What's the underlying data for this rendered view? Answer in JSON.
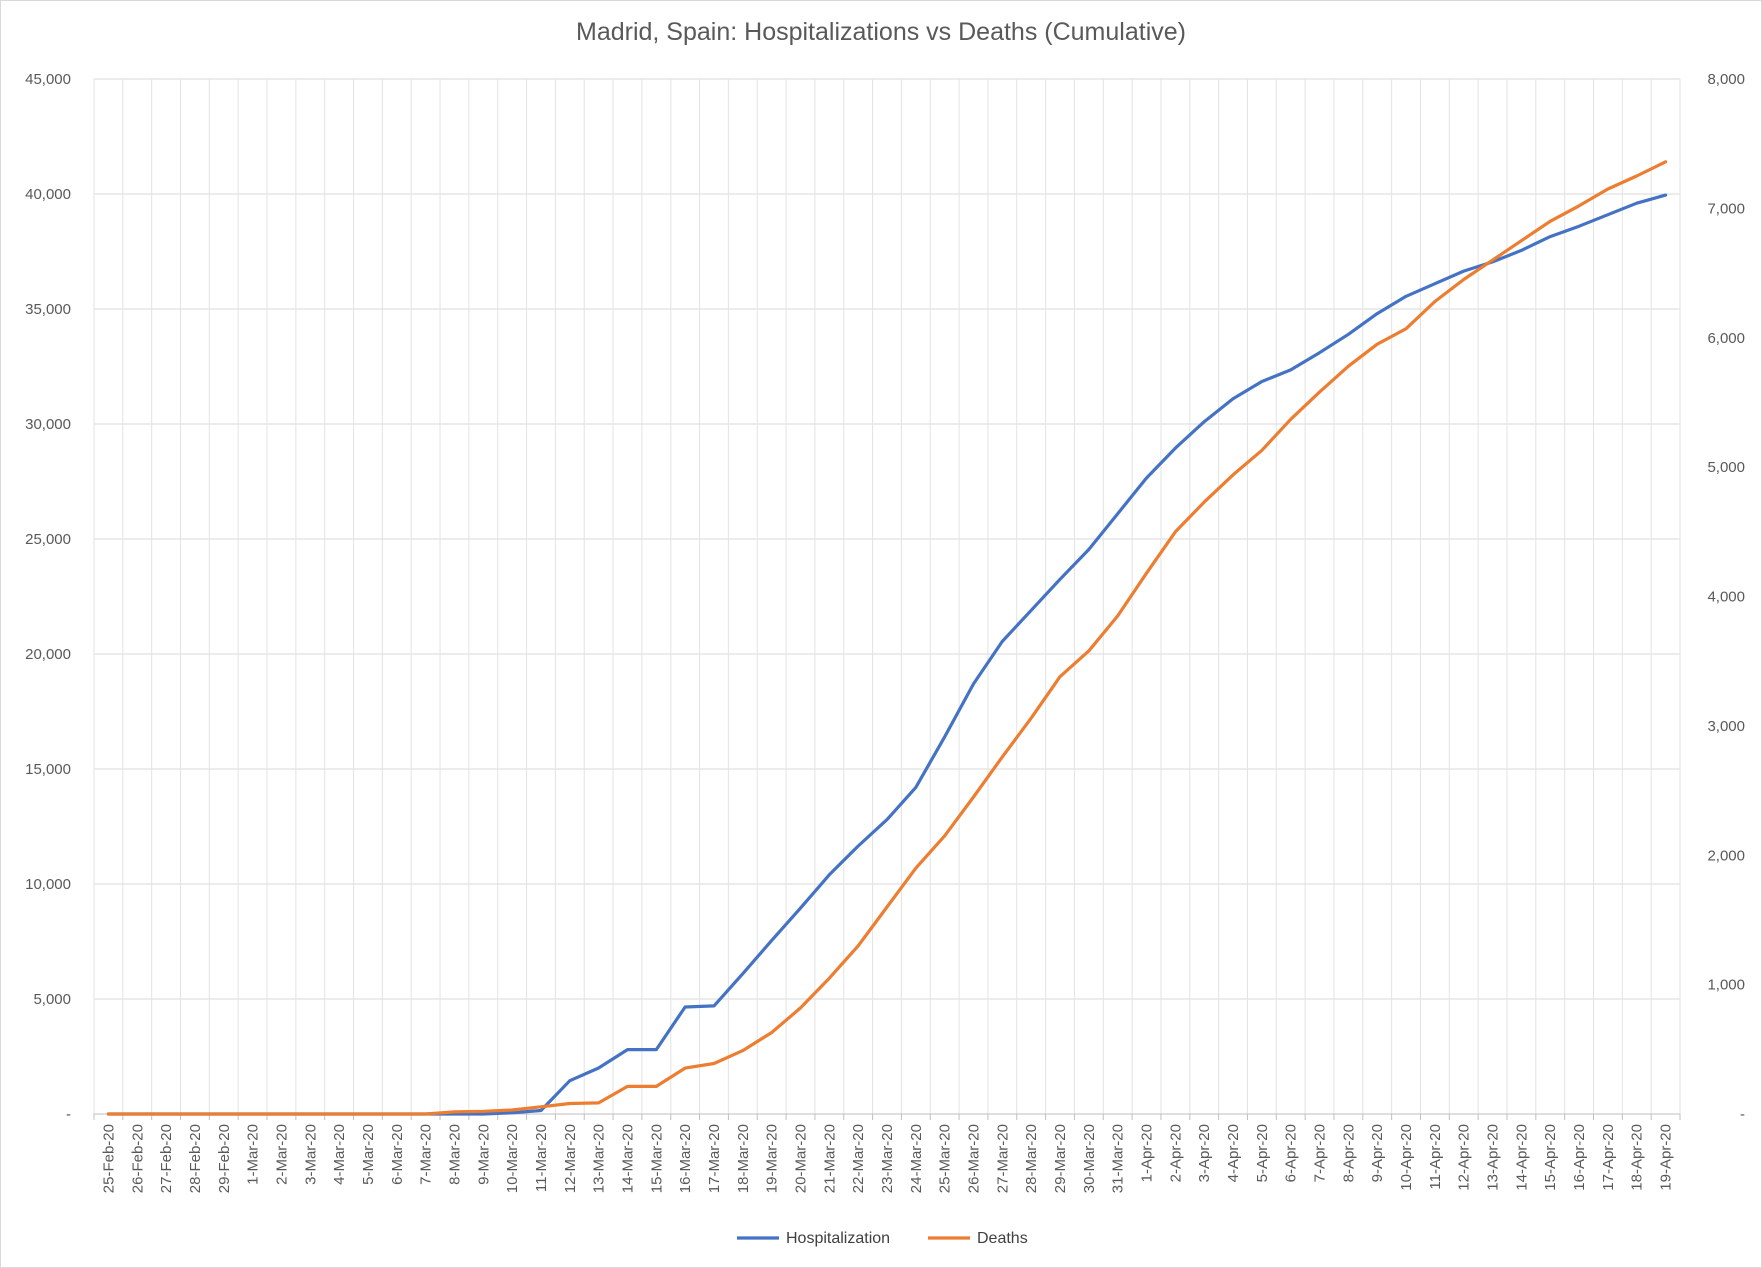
{
  "chart_data": {
    "type": "line",
    "title": "Madrid, Spain: Hospitalizations vs Deaths (Cumulative)",
    "xlabel": "",
    "ylabel": "",
    "y2label": "",
    "categories": [
      "25-Feb-20",
      "26-Feb-20",
      "27-Feb-20",
      "28-Feb-20",
      "29-Feb-20",
      "1-Mar-20",
      "2-Mar-20",
      "3-Mar-20",
      "4-Mar-20",
      "5-Mar-20",
      "6-Mar-20",
      "7-Mar-20",
      "8-Mar-20",
      "9-Mar-20",
      "10-Mar-20",
      "11-Mar-20",
      "12-Mar-20",
      "13-Mar-20",
      "14-Mar-20",
      "15-Mar-20",
      "16-Mar-20",
      "17-Mar-20",
      "18-Mar-20",
      "19-Mar-20",
      "20-Mar-20",
      "21-Mar-20",
      "22-Mar-20",
      "23-Mar-20",
      "24-Mar-20",
      "25-Mar-20",
      "26-Mar-20",
      "27-Mar-20",
      "28-Mar-20",
      "29-Mar-20",
      "30-Mar-20",
      "31-Mar-20",
      "1-Apr-20",
      "2-Apr-20",
      "3-Apr-20",
      "4-Apr-20",
      "5-Apr-20",
      "6-Apr-20",
      "7-Apr-20",
      "8-Apr-20",
      "9-Apr-20",
      "10-Apr-20",
      "11-Apr-20",
      "12-Apr-20",
      "13-Apr-20",
      "14-Apr-20",
      "15-Apr-20",
      "16-Apr-20",
      "17-Apr-20",
      "18-Apr-20",
      "19-Apr-20"
    ],
    "ylim": [
      0,
      45000
    ],
    "y2lim": [
      0,
      8000
    ],
    "y_ticks": [
      "-",
      "5,000",
      "10,000",
      "15,000",
      "20,000",
      "25,000",
      "30,000",
      "35,000",
      "40,000",
      "45,000"
    ],
    "y2_ticks": [
      "-",
      "1,000",
      "2,000",
      "3,000",
      "4,000",
      "5,000",
      "6,000",
      "7,000",
      "8,000"
    ],
    "grid": true,
    "legend_position": "bottom",
    "series": [
      {
        "name": "Hospitalization",
        "axis": "left",
        "color": "#4472C4",
        "values": [
          0,
          0,
          0,
          0,
          0,
          0,
          0,
          0,
          0,
          0,
          0,
          0,
          0,
          0,
          50,
          150,
          1450,
          2000,
          2800,
          2800,
          4650,
          4700,
          6100,
          7550,
          8950,
          10400,
          11650,
          12800,
          14200,
          16400,
          18700,
          20550,
          21900,
          23250,
          24550,
          26100,
          27650,
          28950,
          30100,
          31100,
          31850,
          32350,
          33100,
          33900,
          34800,
          35550,
          36100,
          36650,
          37050,
          37550,
          38150,
          38600,
          39100,
          39600,
          39950
        ]
      },
      {
        "name": "Deaths",
        "axis": "right",
        "color": "#ED7D31",
        "values": [
          0,
          0,
          0,
          0,
          0,
          0,
          0,
          0,
          0,
          0,
          0,
          0,
          16,
          21,
          31,
          56,
          81,
          86,
          213,
          213,
          355,
          390,
          490,
          630,
          820,
          1050,
          1300,
          1600,
          1900,
          2150,
          2450,
          2760,
          3060,
          3380,
          3580,
          3850,
          4180,
          4500,
          4730,
          4940,
          5130,
          5370,
          5580,
          5780,
          5950,
          6070,
          6280,
          6450,
          6600,
          6750,
          6900,
          7020,
          7150,
          7250,
          7360
        ]
      }
    ]
  }
}
